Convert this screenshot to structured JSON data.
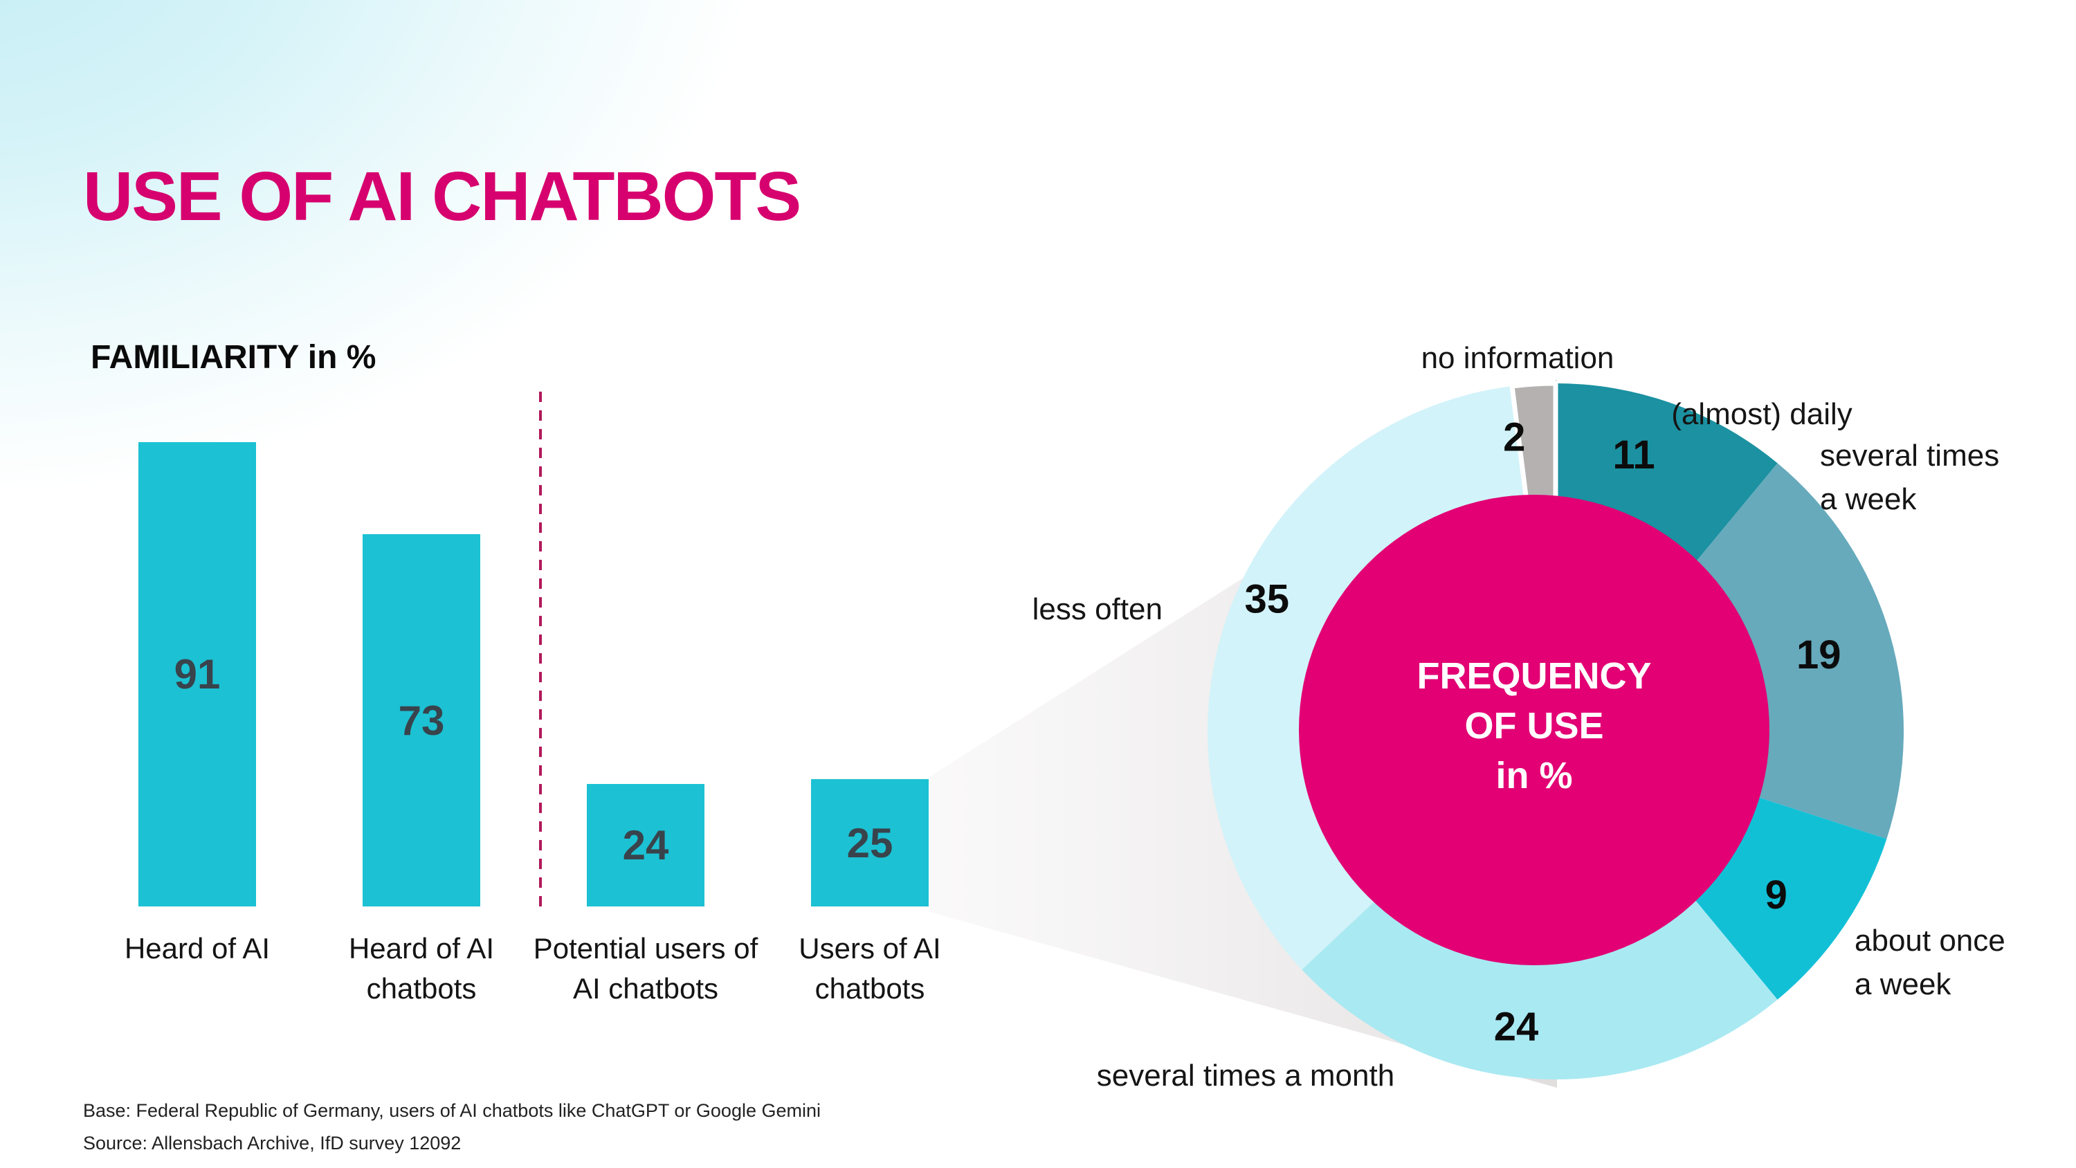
{
  "page": {
    "title": "USE OF AI CHATBOTS",
    "accent_magenta": "#e20074",
    "background_corner_color": "#c3edf5"
  },
  "footer": {
    "base": "Base: Federal Republic of Germany, users of AI chatbots like ChatGPT or Google Gemini",
    "source": "Source: Allensbach Archive, IfD survey 12092"
  },
  "chart_data": [
    {
      "type": "bar",
      "title": "FAMILIARITY in %",
      "categories": [
        "Heard of AI",
        "Heard of AI chatbots",
        "Potential users of AI chatbots",
        "Users of AI chatbots"
      ],
      "values": [
        91,
        73,
        24,
        25
      ],
      "ylim": [
        0,
        100
      ],
      "bar_color": "#1cc1d3",
      "value_label_color": "#39434b",
      "divider_after_category_index": 1,
      "divider_color": "#b1195a",
      "grid": "off",
      "legend": "none"
    },
    {
      "type": "donut",
      "title": "FREQUENCY OF USE in %",
      "center_lines": [
        "FREQUENCY",
        "OF USE",
        "in %"
      ],
      "center_color": "#e20074",
      "start_angle_deg": 0,
      "direction": "clockwise",
      "value_label_color": "#0c0c0c",
      "segments": [
        {
          "label": "(almost) daily",
          "value": 11,
          "color": "#1b91a1"
        },
        {
          "label": "several times a week",
          "value": 19,
          "color": "#66aabc"
        },
        {
          "label": "about once a week",
          "value": 9,
          "color": "#12c0d6"
        },
        {
          "label": "several times a month",
          "value": 24,
          "color": "#a9e9f2"
        },
        {
          "label": "less often",
          "value": 35,
          "color": "#d2f3f9"
        },
        {
          "label": "no information",
          "value": 2,
          "color": "#b5b1b1",
          "separator_color": "#ffffff"
        }
      ]
    }
  ]
}
